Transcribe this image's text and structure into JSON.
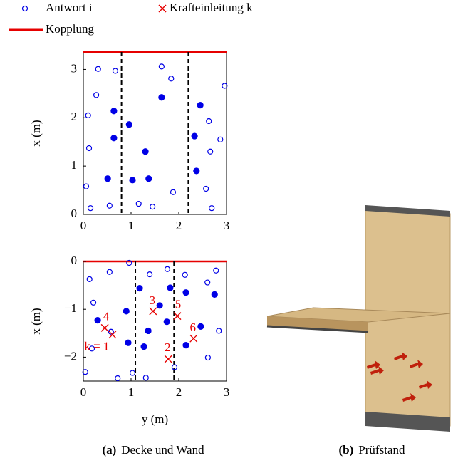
{
  "legend": [
    {
      "label": "Antwort i",
      "marker": "circle",
      "color": "#0000e6"
    },
    {
      "label": "Krafteinleitung k",
      "marker": "cross",
      "color": "#e60000"
    },
    {
      "label": "Kopplung",
      "marker": "line",
      "color": "#e60000"
    }
  ],
  "chart_data": [
    {
      "type": "scatter",
      "ylabel": "x (m)",
      "xlim": [
        0,
        3
      ],
      "ylim": [
        0,
        3.36
      ],
      "xticks": [
        0,
        1,
        2,
        3
      ],
      "yticks": [
        0,
        1,
        2,
        3
      ],
      "vlines": [
        0.8,
        2.2
      ],
      "coupling_color": "#e60000",
      "series": [
        {
          "marker": "circle",
          "filled": false,
          "color": "#0000e6",
          "x": [
            0.06,
            0.15,
            0.12,
            0.1,
            0.27,
            0.31,
            0.67,
            0.55,
            1.16,
            1.45,
            1.64,
            1.84,
            1.88,
            2.57,
            2.63,
            2.66,
            2.69,
            2.87,
            2.96
          ],
          "values": [
            0.58,
            0.13,
            1.37,
            2.05,
            2.47,
            3.01,
            2.97,
            0.18,
            0.22,
            0.16,
            3.06,
            2.81,
            0.46,
            0.53,
            1.93,
            1.3,
            0.13,
            1.55,
            2.66
          ]
        },
        {
          "marker": "circle",
          "filled": true,
          "color": "#0000e6",
          "x": [
            0.64,
            0.64,
            0.51,
            0.96,
            1.03,
            1.3,
            1.37,
            1.64,
            2.45,
            2.33,
            2.37
          ],
          "values": [
            2.14,
            1.58,
            0.74,
            1.86,
            0.71,
            1.3,
            0.74,
            2.42,
            2.26,
            1.62,
            0.9
          ]
        }
      ]
    },
    {
      "type": "scatter",
      "xlabel": "y (m)",
      "ylabel": "x (m)",
      "xlim": [
        0,
        3
      ],
      "ylim": [
        -2.5,
        0
      ],
      "xticks": [
        0,
        1,
        2,
        3
      ],
      "yticks": [
        {
          "value": -2,
          "label": "−2"
        },
        {
          "value": -1,
          "label": "−1"
        },
        0
      ],
      "vlines": [
        1.09,
        1.9
      ],
      "coupling_color": "#e60000",
      "series": [
        {
          "marker": "circle",
          "filled": false,
          "color": "#0000e6",
          "x": [
            0.13,
            0.21,
            0.55,
            0.18,
            0.04,
            0.58,
            0.72,
            0.96,
            1.03,
            1.31,
            1.39,
            1.76,
            1.91,
            2.13,
            2.6,
            2.78,
            2.84,
            2.61
          ],
          "values": [
            -0.37,
            -0.86,
            -0.22,
            -1.82,
            -2.31,
            -1.47,
            -2.44,
            -0.03,
            -2.33,
            -2.43,
            -0.27,
            -0.16,
            -2.21,
            -0.28,
            -0.44,
            -0.19,
            -1.45,
            -2.01
          ]
        },
        {
          "marker": "circle",
          "filled": true,
          "color": "#0000e6",
          "x": [
            0.3,
            0.9,
            1.18,
            1.6,
            1.36,
            1.27,
            0.94,
            1.75,
            1.82,
            2.15,
            2.46,
            2.15,
            2.75
          ],
          "values": [
            -1.23,
            -1.04,
            -0.56,
            -0.92,
            -1.45,
            -1.78,
            -1.7,
            -1.26,
            -0.55,
            -0.65,
            -1.36,
            -1.75,
            -0.69
          ]
        },
        {
          "marker": "cross",
          "color": "#e60000",
          "x": [
            0.61,
            1.78,
            1.46,
            0.45,
            1.97,
            2.31
          ],
          "values": [
            -1.53,
            -2.04,
            -1.04,
            -1.39,
            -1.14,
            -1.61
          ],
          "labels": [
            "k = 1",
            "2",
            "3",
            "4",
            "5",
            "6"
          ]
        }
      ]
    }
  ],
  "captions": [
    {
      "label": "(a)",
      "text": "Decke und Wand"
    },
    {
      "label": "(b)",
      "text": "Prüfstand"
    }
  ]
}
